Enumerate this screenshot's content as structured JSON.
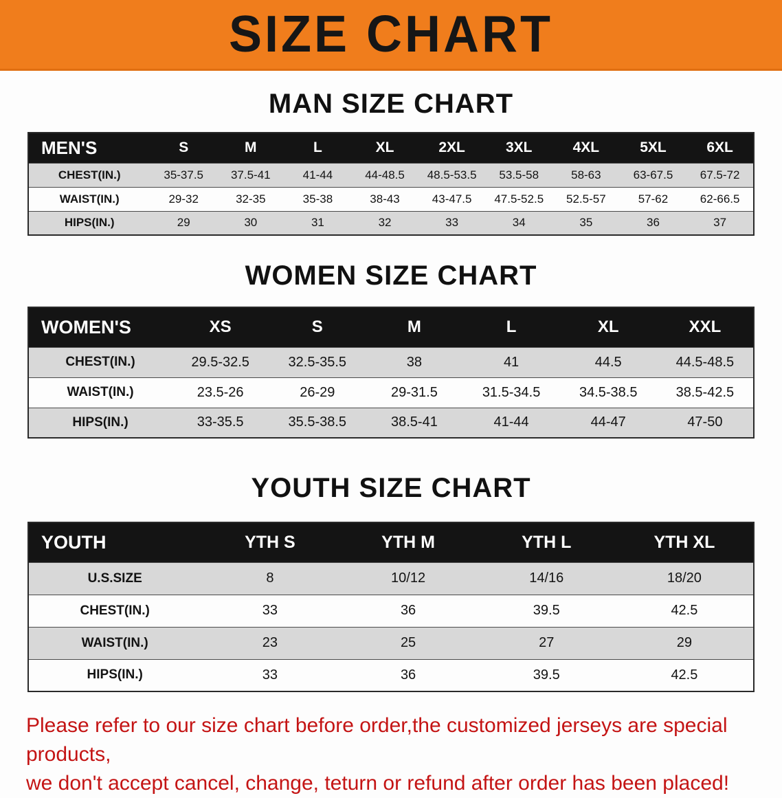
{
  "banner": {
    "title": "SIZE CHART"
  },
  "colors": {
    "banner_bg": "#F07D1C",
    "table_header_bg": "#141414",
    "stripe": "#D8D8D8",
    "notice_text": "#C41414"
  },
  "sections": [
    {
      "heading": "MAN SIZE CHART",
      "table": {
        "header": [
          "MEN'S",
          "S",
          "M",
          "L",
          "XL",
          "2XL",
          "3XL",
          "4XL",
          "5XL",
          "6XL"
        ],
        "rows": [
          {
            "label": "CHEST(IN.)",
            "values": [
              "35-37.5",
              "37.5-41",
              "41-44",
              "44-48.5",
              "48.5-53.5",
              "53.5-58",
              "58-63",
              "63-67.5",
              "67.5-72"
            ]
          },
          {
            "label": "WAIST(IN.)",
            "values": [
              "29-32",
              "32-35",
              "35-38",
              "38-43",
              "43-47.5",
              "47.5-52.5",
              "52.5-57",
              "57-62",
              "62-66.5"
            ]
          },
          {
            "label": "HIPS(IN.)",
            "values": [
              "29",
              "30",
              "31",
              "32",
              "33",
              "34",
              "35",
              "36",
              "37"
            ]
          }
        ]
      }
    },
    {
      "heading": "WOMEN SIZE CHART",
      "table": {
        "header": [
          "WOMEN'S",
          "XS",
          "S",
          "M",
          "L",
          "XL",
          "XXL"
        ],
        "rows": [
          {
            "label": "CHEST(IN.)",
            "values": [
              "29.5-32.5",
              "32.5-35.5",
              "38",
              "41",
              "44.5",
              "44.5-48.5"
            ]
          },
          {
            "label": "WAIST(IN.)",
            "values": [
              "23.5-26",
              "26-29",
              "29-31.5",
              "31.5-34.5",
              "34.5-38.5",
              "38.5-42.5"
            ]
          },
          {
            "label": "HIPS(IN.)",
            "values": [
              "33-35.5",
              "35.5-38.5",
              "38.5-41",
              "41-44",
              "44-47",
              "47-50"
            ]
          }
        ]
      }
    },
    {
      "heading": "YOUTH SIZE CHART",
      "table": {
        "header": [
          "YOUTH",
          "YTH S",
          "YTH M",
          "YTH L",
          "YTH XL"
        ],
        "rows": [
          {
            "label": "U.S.SIZE",
            "values": [
              "8",
              "10/12",
              "14/16",
              "18/20"
            ]
          },
          {
            "label": "CHEST(IN.)",
            "values": [
              "33",
              "36",
              "39.5",
              "42.5"
            ]
          },
          {
            "label": "WAIST(IN.)",
            "values": [
              "23",
              "25",
              "27",
              "29"
            ]
          },
          {
            "label": "HIPS(IN.)",
            "values": [
              "33",
              "36",
              "39.5",
              "42.5"
            ]
          }
        ]
      }
    }
  ],
  "footer": {
    "line1": "Please refer to our size chart before order,the customized jerseys are special products,",
    "line2": "we don't accept cancel, change, teturn or refund after order has been placed!"
  }
}
